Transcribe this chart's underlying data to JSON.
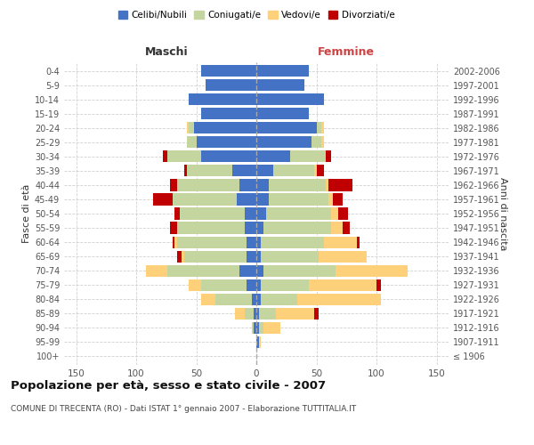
{
  "age_groups": [
    "100+",
    "95-99",
    "90-94",
    "85-89",
    "80-84",
    "75-79",
    "70-74",
    "65-69",
    "60-64",
    "55-59",
    "50-54",
    "45-49",
    "40-44",
    "35-39",
    "30-34",
    "25-29",
    "20-24",
    "15-19",
    "10-14",
    "5-9",
    "0-4"
  ],
  "birth_years": [
    "≤ 1906",
    "1907-1911",
    "1912-1916",
    "1917-1921",
    "1922-1926",
    "1927-1931",
    "1932-1936",
    "1937-1941",
    "1942-1946",
    "1947-1951",
    "1952-1956",
    "1957-1961",
    "1962-1966",
    "1967-1971",
    "1972-1976",
    "1977-1981",
    "1982-1986",
    "1987-1991",
    "1992-1996",
    "1997-2001",
    "2002-2006"
  ],
  "males": {
    "celibi": [
      0,
      0,
      2,
      2,
      4,
      8,
      14,
      8,
      8,
      10,
      10,
      16,
      14,
      20,
      46,
      50,
      52,
      46,
      56,
      42,
      46
    ],
    "coniugati": [
      0,
      0,
      2,
      8,
      30,
      38,
      60,
      52,
      58,
      56,
      54,
      54,
      52,
      38,
      28,
      8,
      4,
      0,
      0,
      0,
      0
    ],
    "vedovi": [
      0,
      0,
      0,
      8,
      12,
      10,
      18,
      2,
      2,
      0,
      0,
      0,
      0,
      0,
      0,
      0,
      2,
      0,
      0,
      0,
      0
    ],
    "divorziati": [
      0,
      0,
      0,
      0,
      0,
      0,
      0,
      4,
      2,
      6,
      4,
      16,
      6,
      2,
      4,
      0,
      0,
      0,
      0,
      0,
      0
    ]
  },
  "females": {
    "nubili": [
      0,
      2,
      2,
      2,
      4,
      4,
      6,
      4,
      4,
      6,
      8,
      10,
      10,
      14,
      28,
      46,
      50,
      44,
      56,
      40,
      44
    ],
    "coniugate": [
      0,
      0,
      4,
      14,
      30,
      40,
      60,
      48,
      52,
      56,
      54,
      50,
      48,
      34,
      30,
      8,
      4,
      0,
      0,
      0,
      0
    ],
    "vedove": [
      0,
      2,
      14,
      32,
      70,
      56,
      60,
      40,
      28,
      10,
      6,
      4,
      2,
      2,
      0,
      2,
      2,
      0,
      0,
      0,
      0
    ],
    "divorziate": [
      0,
      0,
      0,
      4,
      0,
      4,
      0,
      0,
      2,
      6,
      8,
      8,
      20,
      6,
      4,
      0,
      0,
      0,
      0,
      0,
      0
    ]
  },
  "colors": {
    "celibi": "#4472c4",
    "coniugati": "#c5d5a0",
    "vedovi": "#ffd07a",
    "divorziati": "#c00000"
  },
  "xlim": 160,
  "title": "Popolazione per età, sesso e stato civile - 2007",
  "subtitle": "COMUNE DI TRECENTA (RO) - Dati ISTAT 1° gennaio 2007 - Elaborazione TUTTITALIA.IT",
  "ylabel_left": "Fasce di età",
  "ylabel_right": "Anni di nascita",
  "xlabel_left": "Maschi",
  "xlabel_right": "Femmine",
  "legend_labels": [
    "Celibi/Nubili",
    "Coniugati/e",
    "Vedovi/e",
    "Divorziati/e"
  ],
  "background_color": "#ffffff",
  "grid_color": "#cccccc"
}
